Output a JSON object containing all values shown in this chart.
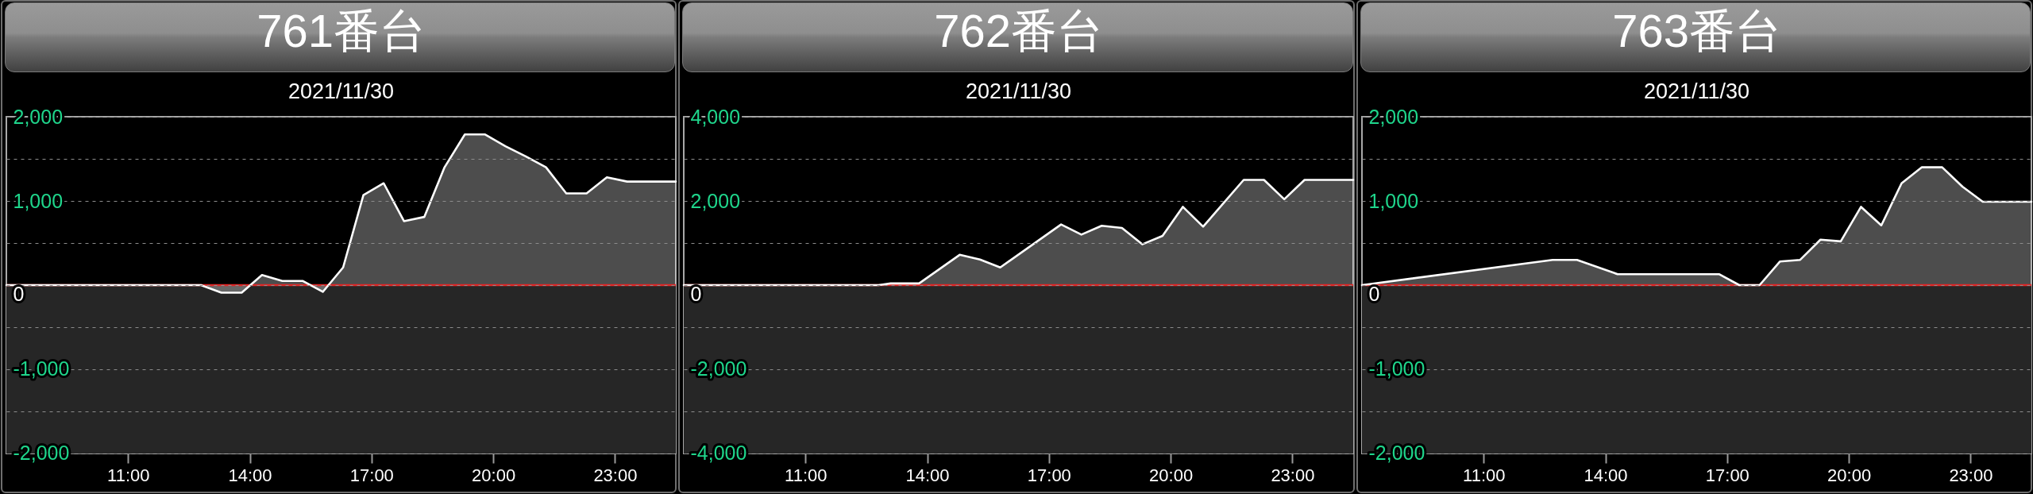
{
  "chart_data": [
    {
      "type": "area",
      "title": "761番台",
      "subtitle": "2021/11/30",
      "x": [
        8,
        12.8,
        13.3,
        13.8,
        14.3,
        14.8,
        15.3,
        15.8,
        16.3,
        16.8,
        17.3,
        17.8,
        18.3,
        18.8,
        19.3,
        19.8,
        20.3,
        20.8,
        21.3,
        21.8,
        22.3,
        22.8,
        23.3,
        24.5
      ],
      "values": [
        0,
        0,
        -90,
        -90,
        120,
        50,
        50,
        -80,
        210,
        1070,
        1210,
        760,
        810,
        1400,
        1790,
        1790,
        1650,
        1530,
        1400,
        1090,
        1090,
        1280,
        1230,
        1230
      ],
      "color": "#ffffff",
      "xlim": [
        8,
        24.5
      ],
      "xticks": [
        {
          "value": 11,
          "label": "11:00"
        },
        {
          "value": 14,
          "label": "14:00"
        },
        {
          "value": 17,
          "label": "17:00"
        },
        {
          "value": 20,
          "label": "20:00"
        },
        {
          "value": 23,
          "label": "23:00"
        }
      ],
      "ylim": [
        -2000,
        2000
      ],
      "yticks": [
        {
          "value": -2000,
          "label": "-2,000"
        },
        {
          "value": -1500,
          "label": null
        },
        {
          "value": -1000,
          "label": "-1,000"
        },
        {
          "value": -500,
          "label": null
        },
        {
          "value": 0,
          "label": "0"
        },
        {
          "value": 500,
          "label": null
        },
        {
          "value": 1000,
          "label": "1,000"
        },
        {
          "value": 1500,
          "label": null
        },
        {
          "value": 2000,
          "label": "2,000"
        }
      ],
      "grid": "y",
      "ref_lines": [
        {
          "axis": "y",
          "value": 0,
          "color": "#e02828"
        }
      ],
      "bands": [
        {
          "axis": "y",
          "from": -2000,
          "to": 0,
          "color": "#262626"
        }
      ]
    },
    {
      "type": "area",
      "title": "762番台",
      "subtitle": "2021/11/30",
      "x": [
        8,
        12.8,
        13.1,
        13.8,
        14.8,
        15.3,
        15.8,
        17.3,
        17.8,
        18.3,
        18.8,
        19.3,
        19.8,
        20.3,
        20.8,
        21.8,
        22.3,
        22.8,
        23.3,
        24.5
      ],
      "values": [
        0,
        0,
        40,
        40,
        720,
        610,
        420,
        1440,
        1200,
        1410,
        1360,
        970,
        1170,
        1860,
        1390,
        2500,
        2500,
        2040,
        2500,
        2500
      ],
      "color": "#ffffff",
      "xlim": [
        8,
        24.5
      ],
      "xticks": [
        {
          "value": 11,
          "label": "11:00"
        },
        {
          "value": 14,
          "label": "14:00"
        },
        {
          "value": 17,
          "label": "17:00"
        },
        {
          "value": 20,
          "label": "20:00"
        },
        {
          "value": 23,
          "label": "23:00"
        }
      ],
      "ylim": [
        -4000,
        4000
      ],
      "yticks": [
        {
          "value": -4000,
          "label": "-4,000"
        },
        {
          "value": -3000,
          "label": null
        },
        {
          "value": -2000,
          "label": "-2,000"
        },
        {
          "value": -1000,
          "label": null
        },
        {
          "value": 0,
          "label": "0"
        },
        {
          "value": 1000,
          "label": null
        },
        {
          "value": 2000,
          "label": "2,000"
        },
        {
          "value": 3000,
          "label": null
        },
        {
          "value": 4000,
          "label": "4,000"
        }
      ],
      "grid": "y",
      "ref_lines": [
        {
          "axis": "y",
          "value": 0,
          "color": "#e02828"
        }
      ],
      "bands": [
        {
          "axis": "y",
          "from": -4000,
          "to": 0,
          "color": "#262626"
        }
      ]
    },
    {
      "type": "area",
      "title": "763番台",
      "subtitle": "2021/11/30",
      "x": [
        8,
        12.7,
        13.3,
        14.3,
        16.8,
        17.3,
        17.8,
        18.3,
        18.8,
        19.3,
        19.8,
        20.3,
        20.8,
        21.3,
        21.8,
        22.3,
        22.8,
        23.3,
        24.5
      ],
      "values": [
        0,
        300,
        300,
        130,
        130,
        0,
        0,
        280,
        300,
        540,
        520,
        930,
        710,
        1210,
        1400,
        1400,
        1170,
        990,
        990
      ],
      "color": "#ffffff",
      "xlim": [
        8,
        24.5
      ],
      "xticks": [
        {
          "value": 11,
          "label": "11:00"
        },
        {
          "value": 14,
          "label": "14:00"
        },
        {
          "value": 17,
          "label": "17:00"
        },
        {
          "value": 20,
          "label": "20:00"
        },
        {
          "value": 23,
          "label": "23:00"
        }
      ],
      "ylim": [
        -2000,
        2000
      ],
      "yticks": [
        {
          "value": -2000,
          "label": "-2,000"
        },
        {
          "value": -1500,
          "label": null
        },
        {
          "value": -1000,
          "label": "-1,000"
        },
        {
          "value": -500,
          "label": null
        },
        {
          "value": 0,
          "label": "0"
        },
        {
          "value": 500,
          "label": null
        },
        {
          "value": 1000,
          "label": "1,000"
        },
        {
          "value": 1500,
          "label": null
        },
        {
          "value": 2000,
          "label": "2,000"
        }
      ],
      "grid": "y",
      "ref_lines": [
        {
          "axis": "y",
          "value": 0,
          "color": "#e02828"
        }
      ],
      "bands": [
        {
          "axis": "y",
          "from": -2000,
          "to": 0,
          "color": "#262626"
        }
      ]
    }
  ]
}
